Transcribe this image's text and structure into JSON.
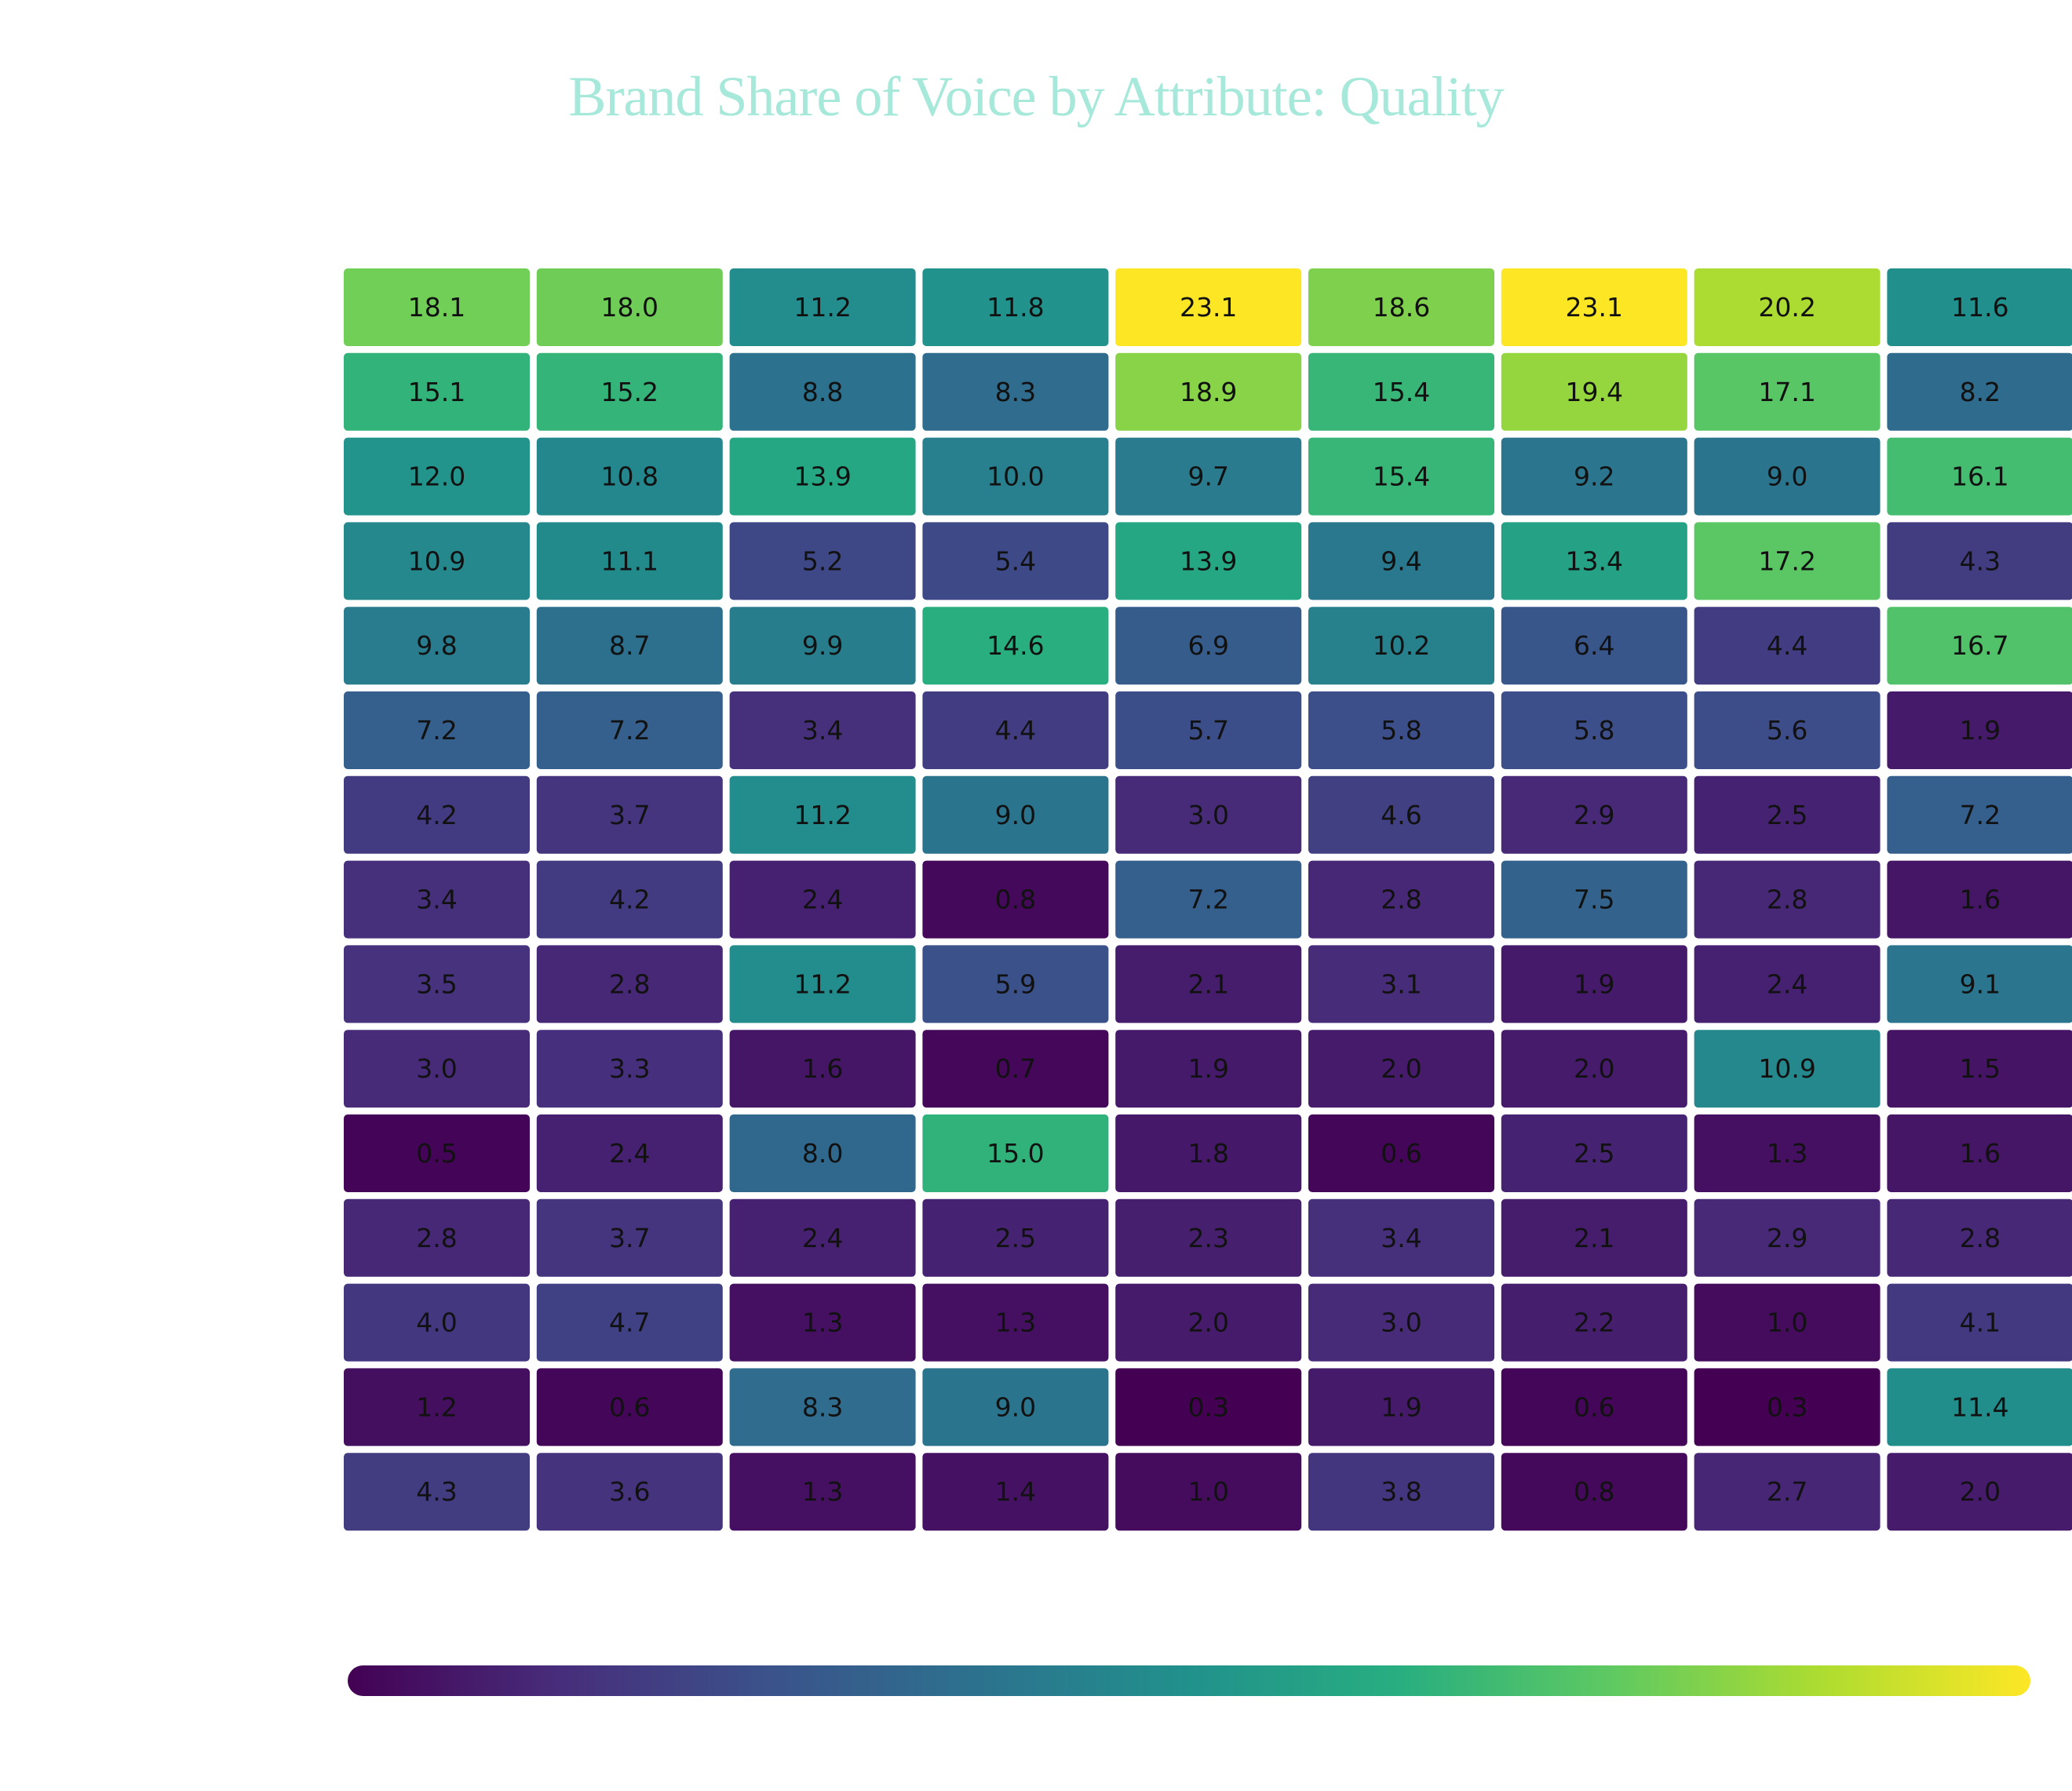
{
  "chart_data": {
    "type": "heatmap",
    "title": "Brand Share of Voice by Attribute: Quality",
    "colorscale": "viridis",
    "colorbar": true,
    "values": [
      [
        18.1,
        18.0,
        11.2,
        11.8,
        23.1,
        18.6,
        23.1,
        20.2,
        11.6
      ],
      [
        15.1,
        15.2,
        8.8,
        8.3,
        18.9,
        15.4,
        19.4,
        17.1,
        8.2
      ],
      [
        12.0,
        10.8,
        13.9,
        10.0,
        9.7,
        15.4,
        9.2,
        9.0,
        16.1
      ],
      [
        10.9,
        11.1,
        5.2,
        5.4,
        13.9,
        9.4,
        13.4,
        17.2,
        4.3
      ],
      [
        9.8,
        8.7,
        9.9,
        14.6,
        6.9,
        10.2,
        6.4,
        4.4,
        16.7
      ],
      [
        7.2,
        7.2,
        3.4,
        4.4,
        5.7,
        5.8,
        5.8,
        5.6,
        1.9
      ],
      [
        4.2,
        3.7,
        11.2,
        9.0,
        3.0,
        4.6,
        2.9,
        2.5,
        7.2
      ],
      [
        3.4,
        4.2,
        2.4,
        0.8,
        7.2,
        2.8,
        7.5,
        2.8,
        1.6
      ],
      [
        3.5,
        2.8,
        11.2,
        5.9,
        2.1,
        3.1,
        1.9,
        2.4,
        9.1
      ],
      [
        3.0,
        3.3,
        1.6,
        0.7,
        1.9,
        2.0,
        2.0,
        10.9,
        1.5
      ],
      [
        0.5,
        2.4,
        8.0,
        15.0,
        1.8,
        0.6,
        2.5,
        1.3,
        1.6
      ],
      [
        2.8,
        3.7,
        2.4,
        2.5,
        2.3,
        3.4,
        2.1,
        2.9,
        2.8
      ],
      [
        4.0,
        4.7,
        1.3,
        1.3,
        2.0,
        3.0,
        2.2,
        1.0,
        4.1
      ],
      [
        1.2,
        0.6,
        8.3,
        9.0,
        0.3,
        1.9,
        0.6,
        0.3,
        11.4
      ],
      [
        4.3,
        3.6,
        1.3,
        1.4,
        1.0,
        3.8,
        0.8,
        2.7,
        2.0
      ]
    ],
    "value_labels": [
      [
        "18.1",
        "18.0",
        "11.2",
        "11.8",
        "23.1",
        "18.6",
        "23.1",
        "20.2",
        "11.6"
      ],
      [
        "15.1",
        "15.2",
        "8.8",
        "8.3",
        "18.9",
        "15.4",
        "19.4",
        "17.1",
        "8.2"
      ],
      [
        "12.0",
        "10.8",
        "13.9",
        "10.0",
        "9.7",
        "15.4",
        "9.2",
        "9.0",
        "16.1"
      ],
      [
        "10.9",
        "11.1",
        "5.2",
        "5.4",
        "13.9",
        "9.4",
        "13.4",
        "17.2",
        "4.3"
      ],
      [
        "9.8",
        "8.7",
        "9.9",
        "14.6",
        "6.9",
        "10.2",
        "6.4",
        "4.4",
        "16.7"
      ],
      [
        "7.2",
        "7.2",
        "3.4",
        "4.4",
        "5.7",
        "5.8",
        "5.8",
        "5.6",
        "1.9"
      ],
      [
        "4.2",
        "3.7",
        "11.2",
        "9.0",
        "3.0",
        "4.6",
        "2.9",
        "2.5",
        "7.2"
      ],
      [
        "3.4",
        "4.2",
        "2.4",
        "0.8",
        "7.2",
        "2.8",
        "7.5",
        "2.8",
        "1.6"
      ],
      [
        "3.5",
        "2.8",
        "11.2",
        "5.9",
        "2.1",
        "3.1",
        "1.9",
        "2.4",
        "9.1"
      ],
      [
        "3.0",
        "3.3",
        "1.6",
        "0.7",
        "1.9",
        "2.0",
        "2.0",
        "10.9",
        "1.5"
      ],
      [
        "0.5",
        "2.4",
        "8.0",
        "15.0",
        "1.8",
        "0.6",
        "2.5",
        "1.3",
        "1.6"
      ],
      [
        "2.8",
        "3.7",
        "2.4",
        "2.5",
        "2.3",
        "3.4",
        "2.1",
        "2.9",
        "2.8"
      ],
      [
        "4.0",
        "4.7",
        "1.3",
        "1.3",
        "2.0",
        "3.0",
        "2.2",
        "1.0",
        "4.1"
      ],
      [
        "1.2",
        "0.6",
        "8.3",
        "9.0",
        "0.3",
        "1.9",
        "0.6",
        "0.3",
        "11.4"
      ],
      [
        "4.3",
        "3.6",
        "1.3",
        "1.4",
        "1.0",
        "3.8",
        "0.8",
        "2.7",
        "2.0"
      ]
    ]
  }
}
